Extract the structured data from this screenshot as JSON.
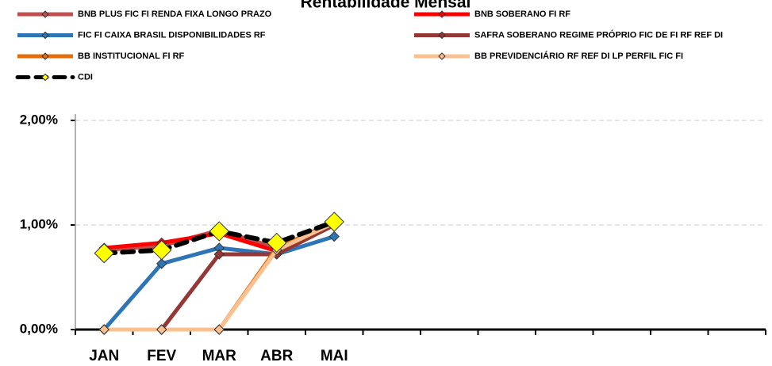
{
  "chart_data": {
    "type": "line",
    "title": "Rentabilidade Mensal",
    "categories": [
      "JAN",
      "FEV",
      "MAR",
      "ABR",
      "MAI",
      null,
      null,
      null,
      null,
      null,
      null,
      null
    ],
    "series": [
      {
        "name": "BNB PLUS FIC FI RENDA FIXA LONGO PRAZO",
        "color": "#c0504d",
        "values": [
          0.76,
          0.8,
          0.95,
          0.78,
          1.02,
          null,
          null,
          null,
          null,
          null,
          null,
          null
        ]
      },
      {
        "name": "BNB SOBERANO FI RF",
        "color": "#ff0000",
        "values": [
          0.78,
          0.83,
          0.92,
          0.75,
          1.0,
          null,
          null,
          null,
          null,
          null,
          null,
          null
        ]
      },
      {
        "name": "FIC FI CAIXA BRASIL DISPONIBILIDADES RF",
        "color": "#2e75b6",
        "values": [
          0,
          0.63,
          0.78,
          0.72,
          0.89,
          null,
          null,
          null,
          null,
          null,
          null,
          null
        ]
      },
      {
        "name": "SAFRA SOBERANO REGIME PRÓPRIO FIC DE FI RF REF DI",
        "color": "#953735",
        "values": [
          0,
          0,
          0.72,
          0.72,
          1.0,
          null,
          null,
          null,
          null,
          null,
          null,
          null
        ]
      },
      {
        "name": "BB INSTITUCIONAL FI RF",
        "color": "#e46c0a",
        "values": [
          0,
          0,
          0,
          0.78,
          1.03,
          null,
          null,
          null,
          null,
          null,
          null,
          null
        ]
      },
      {
        "name": "BB PREVIDENCIÁRIO RF REF DI LP PERFIL FIC FI",
        "color": "#fac090",
        "values": [
          0,
          0,
          0,
          0.76,
          1.02,
          null,
          null,
          null,
          null,
          null,
          null,
          null
        ]
      },
      {
        "name": "CDI",
        "color": "#000000",
        "marker_color": "#ffff00",
        "dashed": true,
        "values": [
          0.73,
          0.76,
          0.94,
          0.83,
          1.03,
          null,
          null,
          null,
          null,
          null,
          null,
          null
        ]
      }
    ],
    "ylim": [
      0,
      2
    ],
    "yticks": [
      {
        "value": 0,
        "label": "0,00%"
      },
      {
        "value": 1,
        "label": "1,00%"
      },
      {
        "value": 2,
        "label": "2,00%"
      }
    ],
    "grid": true
  }
}
